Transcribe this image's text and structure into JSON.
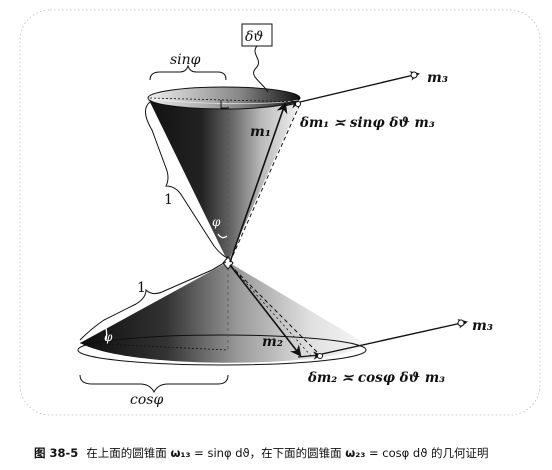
{
  "figure": {
    "label_delta_theta": "δϑ",
    "label_sin_phi": "sinφ",
    "label_cos_phi": "cosφ",
    "label_one_upper": "1",
    "label_one_lower": "1",
    "label_phi_upper": "φ",
    "label_phi_lower": "φ",
    "label_m1": "m₁",
    "label_m2": "m₂",
    "label_m3_upper": "m₃",
    "label_m3_lower": "m₃",
    "eq_upper": "δm₁ ≍ sinφ δϑ m₃",
    "eq_lower": "δm₂ ≍ cosφ δϑ m₃"
  },
  "caption": {
    "figure_number": "图 38-5",
    "text_a": "在上面的圆锥面 ",
    "omega13": "ω₁₃",
    "eq13": " = sinφ dϑ，",
    "text_b": "在下面的圆锥面 ",
    "omega23": "ω₂₃",
    "eq23": " = cosφ dϑ",
    "text_c": " 的几何证明"
  }
}
